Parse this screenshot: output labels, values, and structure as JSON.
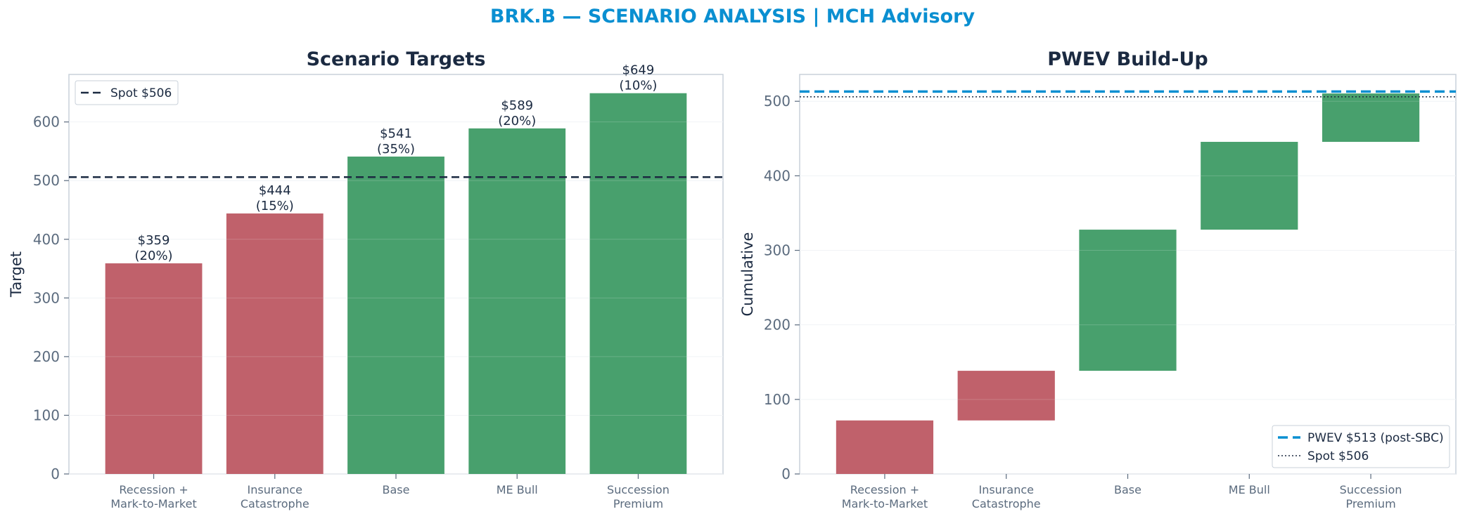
{
  "figure_title": "BRK.B — SCENARIO ANALYSIS | MCH Advisory",
  "colors": {
    "title": "#0a8fd1",
    "bear": "#c0616b",
    "bull": "#48a06d",
    "spot_line": "#1b2a41",
    "pwev_line": "#0a8fd1",
    "axis": "#c9d1da",
    "grid": "#eef1f4"
  },
  "chart_data": [
    {
      "type": "bar",
      "title": "Scenario Targets",
      "xlabel": "",
      "ylabel": "Target",
      "categories": [
        "Recession +\nMark-to-Market",
        "Insurance\nCatastrophe",
        "Base",
        "ME Bull",
        "Succession\nPremium"
      ],
      "values": [
        359,
        444,
        541,
        589,
        649
      ],
      "probabilities": [
        "20%",
        "15%",
        "35%",
        "20%",
        "10%"
      ],
      "data_labels": [
        "$359\n(20%)",
        "$444\n(15%)",
        "$541\n(35%)",
        "$589\n(20%)",
        "$649\n(10%)"
      ],
      "bar_colors": [
        "bear",
        "bear",
        "bull",
        "bull",
        "bull"
      ],
      "reference_lines": [
        {
          "label": "Spot $506",
          "value": 506,
          "style": "dashed"
        }
      ],
      "yticks": [
        0,
        100,
        200,
        300,
        400,
        500,
        600
      ],
      "ylim": [
        0,
        681
      ],
      "grid": true,
      "legend": "top-left"
    },
    {
      "type": "bar",
      "subtype": "waterfall",
      "title": "PWEV Build-Up",
      "xlabel": "",
      "ylabel": "Cumulative",
      "categories": [
        "Recession +\nMark-to-Market",
        "Insurance\nCatastrophe",
        "Base",
        "ME Bull",
        "Succession\nPremium"
      ],
      "values": [
        71.8,
        66.6,
        189.35,
        117.8,
        64.9
      ],
      "cumulative": [
        71.8,
        138.4,
        327.75,
        445.55,
        510.45
      ],
      "bar_colors": [
        "bear",
        "bear",
        "bull",
        "bull",
        "bull"
      ],
      "reference_lines": [
        {
          "label": "PWEV $513 (post-SBC)",
          "value": 513,
          "style": "dashed"
        },
        {
          "label": "Spot $506",
          "value": 506,
          "style": "dotted"
        }
      ],
      "yticks": [
        0,
        100,
        200,
        300,
        400,
        500
      ],
      "ylim": [
        0,
        536
      ],
      "grid": true,
      "legend": "bottom-right"
    }
  ]
}
